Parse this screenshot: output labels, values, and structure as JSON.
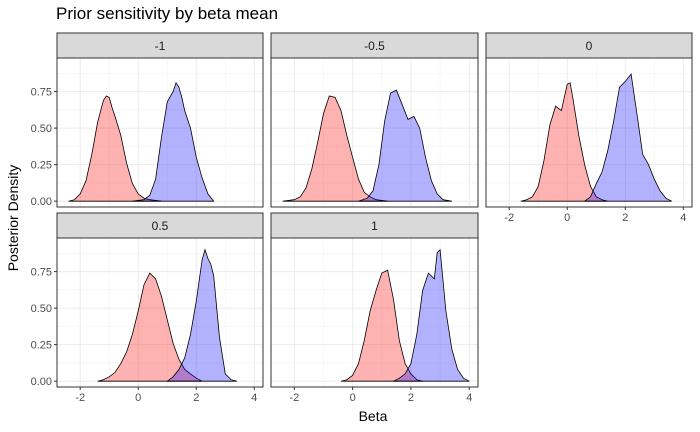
{
  "chart_data": {
    "type": "area",
    "title": "Prior sensitivity by beta mean",
    "xlabel": "Beta",
    "ylabel": "Posterior Density",
    "xlim": [
      -2.8,
      4.3
    ],
    "ylim": [
      -0.04,
      0.98
    ],
    "x_ticks": [
      -2,
      0,
      2,
      4
    ],
    "y_ticks": [
      0.0,
      0.25,
      0.5,
      0.75
    ],
    "y_tick_labels": [
      "0.00",
      "0.25",
      "0.50",
      "0.75"
    ],
    "grid": true,
    "legend": "none",
    "colors": {
      "red": "#ff0000",
      "blue": "#0000ff",
      "fill_opacity": 0.3,
      "strip_bg": "#d9d9d9",
      "grid": "#ebebeb"
    },
    "facets": [
      {
        "label": "-1",
        "series": [
          {
            "color": "red",
            "x": [
              -2.4,
              -2.2,
              -2.0,
              -1.8,
              -1.6,
              -1.4,
              -1.2,
              -1.1,
              -1.0,
              -0.9,
              -0.8,
              -0.6,
              -0.4,
              -0.2,
              0.0,
              0.2,
              0.4,
              0.6,
              0.8
            ],
            "y": [
              0.0,
              0.01,
              0.05,
              0.14,
              0.32,
              0.54,
              0.69,
              0.72,
              0.71,
              0.64,
              0.58,
              0.45,
              0.26,
              0.12,
              0.05,
              0.02,
              0.01,
              0.005,
              0.0
            ]
          },
          {
            "color": "blue",
            "x": [
              -0.2,
              0.2,
              0.4,
              0.6,
              0.8,
              1.0,
              1.2,
              1.3,
              1.4,
              1.5,
              1.6,
              1.8,
              2.0,
              2.2,
              2.4,
              2.6
            ],
            "y": [
              0.0,
              0.01,
              0.04,
              0.15,
              0.44,
              0.68,
              0.75,
              0.81,
              0.78,
              0.71,
              0.62,
              0.5,
              0.3,
              0.16,
              0.05,
              0.0
            ]
          }
        ]
      },
      {
        "label": "-0.5",
        "series": [
          {
            "color": "red",
            "x": [
              -2.4,
              -2.0,
              -1.8,
              -1.6,
              -1.4,
              -1.2,
              -1.0,
              -0.8,
              -0.6,
              -0.4,
              -0.2,
              0.0,
              0.2,
              0.4,
              0.6,
              0.8,
              1.0,
              1.2
            ],
            "y": [
              0.0,
              0.01,
              0.03,
              0.09,
              0.22,
              0.4,
              0.6,
              0.72,
              0.71,
              0.62,
              0.45,
              0.3,
              0.15,
              0.06,
              0.03,
              0.01,
              0.005,
              0.0
            ]
          },
          {
            "color": "blue",
            "x": [
              0.2,
              0.5,
              0.7,
              0.9,
              1.1,
              1.3,
              1.5,
              1.7,
              1.9,
              2.1,
              2.3,
              2.5,
              2.7,
              2.9,
              3.1,
              3.4
            ],
            "y": [
              0.0,
              0.02,
              0.07,
              0.25,
              0.55,
              0.74,
              0.76,
              0.66,
              0.56,
              0.58,
              0.5,
              0.3,
              0.14,
              0.05,
              0.01,
              0.0
            ]
          }
        ]
      },
      {
        "label": "0",
        "series": [
          {
            "color": "red",
            "x": [
              -1.6,
              -1.4,
              -1.2,
              -1.0,
              -0.8,
              -0.6,
              -0.4,
              -0.2,
              0.0,
              0.1,
              0.2,
              0.4,
              0.6,
              0.8,
              1.0,
              1.2,
              1.4
            ],
            "y": [
              0.0,
              0.01,
              0.03,
              0.1,
              0.28,
              0.52,
              0.65,
              0.62,
              0.8,
              0.81,
              0.7,
              0.45,
              0.25,
              0.1,
              0.03,
              0.01,
              0.0
            ]
          },
          {
            "color": "blue",
            "x": [
              0.6,
              0.8,
              1.0,
              1.2,
              1.4,
              1.6,
              1.8,
              2.0,
              2.2,
              2.4,
              2.6,
              2.8,
              3.0,
              3.2,
              3.4,
              3.6
            ],
            "y": [
              0.0,
              0.03,
              0.12,
              0.2,
              0.35,
              0.55,
              0.78,
              0.82,
              0.87,
              0.6,
              0.32,
              0.25,
              0.15,
              0.07,
              0.02,
              0.0
            ]
          }
        ]
      },
      {
        "label": "0.5",
        "series": [
          {
            "color": "red",
            "x": [
              -1.4,
              -1.2,
              -1.0,
              -0.8,
              -0.6,
              -0.4,
              -0.2,
              0.0,
              0.2,
              0.4,
              0.6,
              0.8,
              1.0,
              1.2,
              1.4,
              1.6,
              1.8,
              2.0,
              2.2
            ],
            "y": [
              0.0,
              0.01,
              0.03,
              0.06,
              0.12,
              0.2,
              0.32,
              0.48,
              0.66,
              0.74,
              0.7,
              0.58,
              0.42,
              0.26,
              0.15,
              0.08,
              0.05,
              0.02,
              0.0
            ]
          },
          {
            "color": "blue",
            "x": [
              1.0,
              1.2,
              1.4,
              1.6,
              1.8,
              2.0,
              2.2,
              2.3,
              2.4,
              2.5,
              2.6,
              2.8,
              3.0,
              3.2,
              3.4
            ],
            "y": [
              0.0,
              0.03,
              0.08,
              0.16,
              0.32,
              0.55,
              0.83,
              0.9,
              0.84,
              0.8,
              0.72,
              0.3,
              0.05,
              0.01,
              0.0
            ]
          }
        ]
      },
      {
        "label": "1",
        "series": [
          {
            "color": "red",
            "x": [
              -0.4,
              -0.2,
              0.0,
              0.2,
              0.4,
              0.6,
              0.8,
              1.0,
              1.2,
              1.4,
              1.6,
              1.8,
              2.0,
              2.2,
              2.4
            ],
            "y": [
              0.0,
              0.01,
              0.04,
              0.12,
              0.28,
              0.48,
              0.62,
              0.74,
              0.76,
              0.56,
              0.28,
              0.12,
              0.05,
              0.01,
              0.0
            ]
          },
          {
            "color": "blue",
            "x": [
              1.4,
              1.6,
              1.8,
              2.0,
              2.2,
              2.4,
              2.6,
              2.8,
              2.9,
              3.0,
              3.2,
              3.4,
              3.6,
              3.8,
              4.0
            ],
            "y": [
              0.0,
              0.02,
              0.05,
              0.12,
              0.32,
              0.62,
              0.74,
              0.7,
              0.88,
              0.9,
              0.48,
              0.22,
              0.08,
              0.02,
              0.0
            ]
          }
        ]
      }
    ]
  }
}
